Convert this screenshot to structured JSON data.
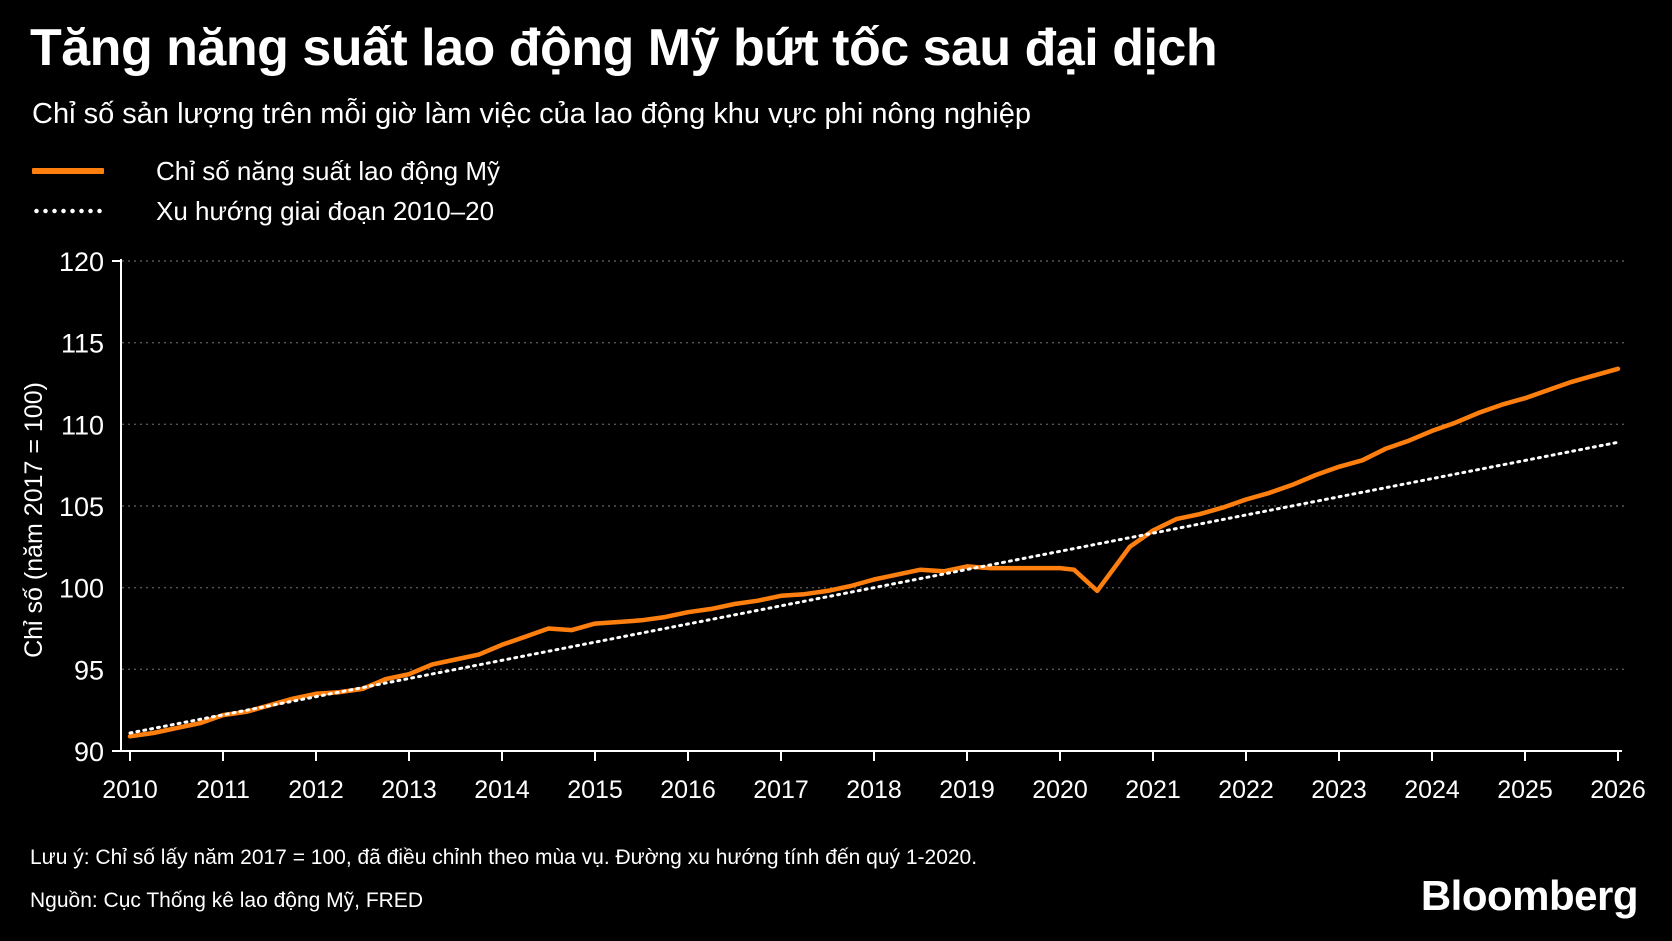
{
  "title": "Tăng năng suất lao động Mỹ bứt tốc sau đại dịch",
  "subtitle": "Chỉ số sản lượng trên mỗi giờ làm việc của lao động khu vực phi nông nghiệp",
  "note": "Lưu ý: Chỉ số lấy năm 2017 = 100, đã điều chỉnh theo mùa vụ. Đường xu hướng tính đến quý 1-2020.",
  "source": "Nguồn: Cục Thống kê lao động Mỹ, FRED",
  "brand": "Bloomberg",
  "colors": {
    "background": "#000000",
    "productivity": "#ff7f0e",
    "trend": "#ffffff",
    "grid": "#555555",
    "text": "#ffffff"
  },
  "chart_data": {
    "type": "line",
    "ylabel": "Chỉ số (năm 2017 = 100)",
    "xlabel": "",
    "xlim": [
      2010,
      2026
    ],
    "ylim": [
      90,
      120
    ],
    "x_ticks": [
      "2010",
      "2011",
      "2012",
      "2013",
      "2014",
      "2015",
      "2016",
      "2017",
      "2018",
      "2019",
      "2020",
      "2021",
      "2022",
      "2023",
      "2024",
      "2025",
      "2026"
    ],
    "y_ticks": [
      "90",
      "95",
      "100",
      "105",
      "110",
      "115",
      "120"
    ],
    "grid": "horizontal dotted",
    "legend_position": "top-left",
    "series": [
      {
        "name": "Chỉ số năng suất lao động Mỹ",
        "style": "solid",
        "x": [
          2010.0,
          2010.25,
          2010.5,
          2010.75,
          2011.0,
          2011.25,
          2011.5,
          2011.75,
          2012.0,
          2012.25,
          2012.5,
          2012.75,
          2013.0,
          2013.25,
          2013.5,
          2013.75,
          2014.0,
          2014.25,
          2014.5,
          2014.75,
          2015.0,
          2015.25,
          2015.5,
          2015.75,
          2016.0,
          2016.25,
          2016.5,
          2016.75,
          2017.0,
          2017.25,
          2017.5,
          2017.75,
          2018.0,
          2018.25,
          2018.5,
          2018.75,
          2019.0,
          2019.25,
          2019.5,
          2019.75,
          2020.0,
          2020.15,
          2020.4,
          2020.75,
          2021.0,
          2021.25,
          2021.5,
          2021.75,
          2022.0,
          2022.25,
          2022.5,
          2022.75,
          2023.0,
          2023.25,
          2023.5,
          2023.75,
          2024.0,
          2024.25,
          2024.5,
          2024.75,
          2025.0,
          2025.25,
          2025.5,
          2025.75,
          2026.0
        ],
        "values": [
          90.9,
          91.1,
          91.4,
          91.7,
          92.2,
          92.4,
          92.8,
          93.2,
          93.5,
          93.6,
          93.8,
          94.4,
          94.7,
          95.3,
          95.6,
          95.9,
          96.5,
          97.0,
          97.5,
          97.4,
          97.8,
          97.9,
          98.0,
          98.2,
          98.5,
          98.7,
          99.0,
          99.2,
          99.5,
          99.6,
          99.8,
          100.1,
          100.5,
          100.8,
          101.1,
          101.0,
          101.3,
          101.2,
          101.2,
          101.2,
          101.2,
          101.1,
          99.8,
          102.5,
          103.5,
          104.2,
          104.5,
          104.9,
          105.4,
          105.8,
          106.3,
          106.9,
          107.4,
          107.8,
          108.5,
          109.0,
          109.6,
          110.1,
          110.7,
          111.2,
          111.6,
          112.1,
          112.6,
          113.0,
          113.4
        ]
      },
      {
        "name": "Xu hướng giai đoạn 2010–20",
        "style": "dotted",
        "x": [
          2010,
          2026
        ],
        "values": [
          91.1,
          108.9
        ]
      }
    ]
  }
}
